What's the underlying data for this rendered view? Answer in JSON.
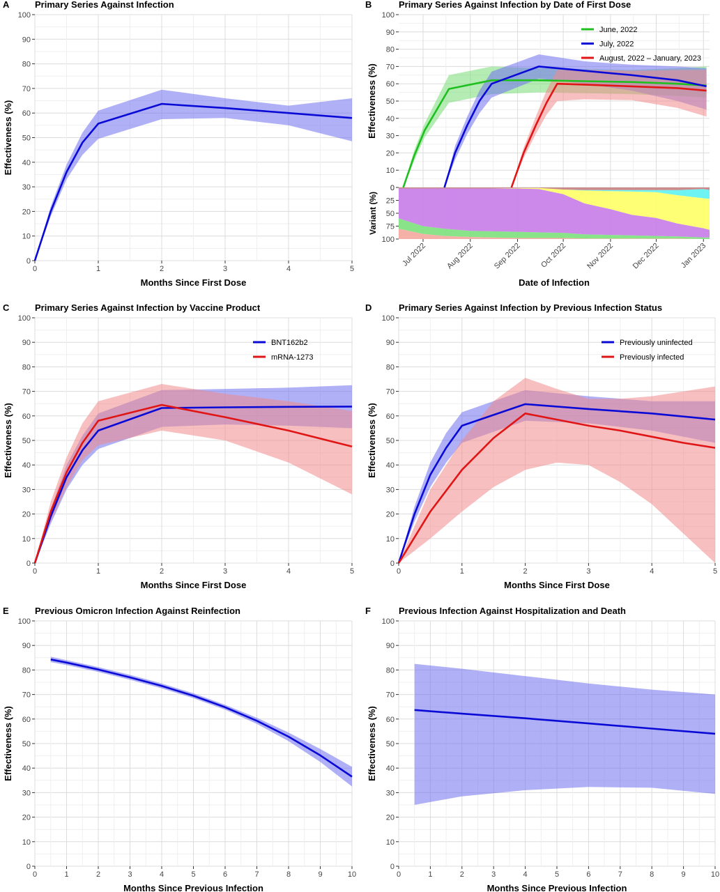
{
  "figure": {
    "panels": [
      {
        "letter": "A",
        "title": "Primary Series Against Infection"
      },
      {
        "letter": "B",
        "title": "Primary Series Against Infection by Date of First Dose"
      },
      {
        "letter": "C",
        "title": "Primary Series Against Infection by Vaccine Product"
      },
      {
        "letter": "D",
        "title": "Primary Series Against Infection by Previous Infection Status"
      },
      {
        "letter": "E",
        "title": "Previous Omicron Infection Against Reinfection"
      },
      {
        "letter": "F",
        "title": "Previous Infection Against Hospitalization and Death"
      }
    ]
  },
  "chart_data": [
    {
      "panel": "A",
      "type": "line",
      "title": "Primary Series Against Infection",
      "xlabel": "Months Since First Dose",
      "ylabel": "Effectiveness (%)",
      "xlim": [
        0,
        5
      ],
      "ylim": [
        0,
        100
      ],
      "grid": true,
      "xticks": [
        0,
        1,
        2,
        3,
        4,
        5
      ],
      "yticks": [
        0,
        10,
        20,
        30,
        40,
        50,
        60,
        70,
        80,
        90,
        100
      ],
      "series": [
        {
          "color": "#0a0ad6",
          "band_color": "#7070f0",
          "x": [
            0,
            0.25,
            0.5,
            0.75,
            1,
            2,
            3,
            4,
            5
          ],
          "y": [
            0,
            20,
            36,
            48,
            55.7,
            63.7,
            62,
            60,
            58
          ],
          "lower": [
            0,
            18,
            33,
            43,
            49.5,
            57.5,
            58,
            55,
            48.5
          ],
          "upper": [
            0,
            22,
            39,
            52,
            61,
            69.5,
            66,
            63,
            66
          ]
        }
      ]
    },
    {
      "panel": "B",
      "type": "line",
      "title": "Primary Series Against Infection by Date of First Dose",
      "xlabel": "Date of Infection",
      "ylabel": "Effectiveness (%)",
      "x_domain": [
        "2022-06-15",
        "2023-01-05"
      ],
      "ylim": [
        0,
        100
      ],
      "grid": true,
      "x_ticks": [
        {
          "date": "2022-07-01",
          "label": "Jul 2022"
        },
        {
          "date": "2022-08-01",
          "label": "Aug 2022"
        },
        {
          "date": "2022-09-01",
          "label": "Sep 2022"
        },
        {
          "date": "2022-10-01",
          "label": "Oct 2022"
        },
        {
          "date": "2022-11-01",
          "label": "Nov 2022"
        },
        {
          "date": "2022-12-01",
          "label": "Dec 2022"
        },
        {
          "date": "2023-01-01",
          "label": "Jan 2023"
        }
      ],
      "yticks": [
        0,
        10,
        20,
        30,
        40,
        50,
        60,
        70,
        80,
        90,
        100
      ],
      "legend_position": "top-right",
      "series": [
        {
          "name": "June, 2022",
          "color": "#1fbf1f",
          "band_color": "#77dd77",
          "x": [
            "2022-06-18",
            "2022-06-25",
            "2022-07-02",
            "2022-07-10",
            "2022-07-18",
            "2022-08-15",
            "2022-09-15",
            "2022-10-15",
            "2022-11-15",
            "2022-12-15",
            "2023-01-03"
          ],
          "y": [
            0,
            18,
            33,
            45,
            57,
            62,
            62,
            61.5,
            61,
            60,
            59
          ],
          "lower": [
            0,
            15,
            29,
            39,
            49,
            54,
            55,
            54.5,
            54,
            53,
            52
          ],
          "upper": [
            0,
            21,
            37,
            51,
            65,
            70,
            69,
            68.5,
            68,
            69,
            70
          ]
        },
        {
          "name": "July, 2022",
          "color": "#0a0ad6",
          "band_color": "#7070f0",
          "x": [
            "2022-07-15",
            "2022-07-22",
            "2022-07-30",
            "2022-08-07",
            "2022-08-15",
            "2022-09-15",
            "2022-10-15",
            "2022-11-15",
            "2022-12-15",
            "2023-01-03"
          ],
          "y": [
            0,
            20,
            36,
            50,
            60,
            70,
            67.5,
            65,
            62,
            58.5
          ],
          "lower": [
            0,
            16,
            31,
            43,
            52,
            63,
            60,
            56,
            50,
            45
          ],
          "upper": [
            0,
            24,
            41,
            56,
            67,
            77,
            73,
            71,
            70,
            69
          ]
        },
        {
          "name": "August, 2022 – January, 2023",
          "color": "#e01515",
          "band_color": "#f08a8a",
          "x": [
            "2022-08-28",
            "2022-09-05",
            "2022-09-13",
            "2022-09-20",
            "2022-09-27",
            "2022-10-15",
            "2022-11-15",
            "2022-12-15",
            "2023-01-03"
          ],
          "y": [
            0,
            20,
            36,
            49,
            60,
            59.5,
            58.5,
            57.5,
            56
          ],
          "lower": [
            0,
            17,
            31,
            42,
            50,
            51,
            50.5,
            46,
            41
          ],
          "upper": [
            0,
            23,
            41,
            56,
            68,
            68,
            67.5,
            68,
            68
          ]
        }
      ],
      "variant_panel": {
        "ylabel": "Variant (%)",
        "yticks": [
          0,
          25,
          50,
          75,
          100
        ],
        "ylim": [
          0,
          100
        ],
        "dates": [
          "2022-06-15",
          "2022-07-01",
          "2022-07-15",
          "2022-08-01",
          "2022-08-15",
          "2022-09-01",
          "2022-09-15",
          "2022-10-01",
          "2022-10-15",
          "2022-11-01",
          "2022-11-15",
          "2022-12-01",
          "2022-12-15",
          "2023-01-01",
          "2023-01-05"
        ],
        "layers": [
          {
            "color": "#f4a99d",
            "values": [
              20,
              10,
              6,
              4,
              3,
              2,
              2,
              2,
              1,
              1,
              1,
              1,
              1,
              0,
              0
            ]
          },
          {
            "color": "#7ce07c",
            "values": [
              20,
              15,
              14,
              12,
              12,
              12,
              11,
              10,
              8,
              7,
              6,
              5,
              4,
              3,
              3
            ]
          },
          {
            "color": "#c77ce8",
            "values": [
              58,
              73,
              78,
              82,
              83,
              84,
              84,
              75,
              60,
              50,
              40,
              35,
              25,
              18,
              15
            ]
          },
          {
            "color": "#ffff66",
            "values": [
              0,
              0,
              0,
              0,
              0,
              1,
              2,
              9,
              25,
              35,
              45,
              50,
              55,
              58,
              60
            ]
          },
          {
            "color": "#5ef2f2",
            "values": [
              0,
              0,
              0,
              0,
              0,
              0,
              0,
              0,
              1,
              2,
              3,
              4,
              10,
              18,
              17
            ]
          },
          {
            "color": "#c47f7f",
            "values": [
              2,
              2,
              2,
              2,
              2,
              1,
              1,
              4,
              5,
              5,
              5,
              5,
              5,
              3,
              5
            ]
          }
        ]
      }
    },
    {
      "panel": "C",
      "type": "line",
      "title": "Primary Series Against Infection by Vaccine Product",
      "xlabel": "Months Since First Dose",
      "ylabel": "Effectiveness (%)",
      "xlim": [
        0,
        5
      ],
      "ylim": [
        0,
        100
      ],
      "grid": true,
      "xticks": [
        0,
        1,
        2,
        3,
        4,
        5
      ],
      "yticks": [
        0,
        10,
        20,
        30,
        40,
        50,
        60,
        70,
        80,
        90,
        100
      ],
      "legend_position": "top-right",
      "series": [
        {
          "name": "BNT162b2",
          "color": "#0a0ad6",
          "band_color": "#7070f0",
          "x": [
            0,
            0.25,
            0.5,
            0.75,
            1,
            2,
            3,
            4,
            5
          ],
          "y": [
            0,
            19,
            35,
            46,
            54,
            63.2,
            63.5,
            63.7,
            63.8
          ],
          "lower": [
            0,
            16,
            30,
            40,
            46.5,
            55.5,
            56.5,
            56,
            55
          ],
          "upper": [
            0,
            22,
            40,
            52,
            61,
            70.5,
            71,
            71.5,
            72.5
          ]
        },
        {
          "name": "mRNA-1273",
          "color": "#e01515",
          "band_color": "#f08a8a",
          "x": [
            0,
            0.25,
            0.5,
            0.75,
            1,
            2,
            3,
            4,
            5
          ],
          "y": [
            0,
            21,
            37,
            49,
            58,
            64.5,
            59.5,
            54,
            47.5
          ],
          "lower": [
            0,
            17,
            31,
            42,
            48,
            54,
            50,
            41,
            28
          ],
          "upper": [
            0,
            25,
            43,
            57,
            66,
            73,
            69,
            66,
            62
          ]
        }
      ]
    },
    {
      "panel": "D",
      "type": "line",
      "title": "Primary Series Against Infection by Previous Infection Status",
      "xlabel": "Months Since First Dose",
      "ylabel": "Effectiveness (%)",
      "xlim": [
        0,
        5
      ],
      "ylim": [
        0,
        100
      ],
      "grid": true,
      "xticks": [
        0,
        1,
        2,
        3,
        4,
        5
      ],
      "yticks": [
        0,
        10,
        20,
        30,
        40,
        50,
        60,
        70,
        80,
        90,
        100
      ],
      "legend_position": "top-right",
      "series": [
        {
          "name": "Previously uninfected",
          "color": "#0a0ad6",
          "band_color": "#7070f0",
          "x": [
            0,
            0.25,
            0.5,
            0.75,
            1,
            2,
            3,
            4,
            5
          ],
          "y": [
            0,
            20,
            36,
            47,
            56,
            64.8,
            62.8,
            61,
            58.5
          ],
          "lower": [
            0,
            17,
            31,
            41,
            49,
            58,
            57,
            54,
            49
          ],
          "upper": [
            0,
            23,
            41,
            53,
            61.5,
            70.5,
            68,
            66,
            66
          ]
        },
        {
          "name": "Previously infected",
          "color": "#e01515",
          "band_color": "#f08a8a",
          "x": [
            0,
            0.5,
            1,
            1.5,
            2,
            2.5,
            3,
            3.5,
            4,
            4.5,
            5
          ],
          "y": [
            0,
            21,
            38,
            51,
            61,
            58.5,
            56,
            54,
            51.5,
            49,
            47
          ],
          "lower": [
            0,
            10,
            21,
            31,
            38,
            41,
            40,
            33,
            24,
            12,
            0
          ],
          "upper": [
            0,
            30,
            50,
            66,
            75.5,
            71,
            67,
            67,
            68,
            70,
            72
          ]
        }
      ]
    },
    {
      "panel": "E",
      "type": "line",
      "title": "Previous Omicron Infection Against Reinfection",
      "xlabel": "Months Since Previous Infection",
      "ylabel": "Effectiveness (%)",
      "xlim": [
        0,
        10
      ],
      "ylim": [
        0,
        100
      ],
      "grid": true,
      "xticks": [
        0,
        1,
        2,
        3,
        4,
        5,
        6,
        7,
        8,
        9,
        10
      ],
      "yticks": [
        0,
        10,
        20,
        30,
        40,
        50,
        60,
        70,
        80,
        90,
        100
      ],
      "series": [
        {
          "color": "#0a0ad6",
          "band_color": "#7070f0",
          "x": [
            0.5,
            1,
            2,
            3,
            4,
            5,
            6,
            7,
            8,
            9,
            10
          ],
          "y": [
            84.3,
            83,
            80.2,
            77,
            73.5,
            69.5,
            64.8,
            59.3,
            52.8,
            45.2,
            36.5
          ],
          "lower": [
            83.2,
            82,
            79.2,
            76,
            72.5,
            68.5,
            63.8,
            58,
            51,
            42.5,
            32.5
          ],
          "upper": [
            85.4,
            84,
            81.2,
            78,
            74.5,
            70.5,
            65.8,
            60.5,
            54.5,
            47.8,
            40.5
          ]
        }
      ]
    },
    {
      "panel": "F",
      "type": "line",
      "title": "Previous Infection Against Hospitalization and Death",
      "xlabel": "Months Since Previous Infection",
      "ylabel": "Effectiveness (%)",
      "xlim": [
        0,
        10
      ],
      "ylim": [
        0,
        100
      ],
      "grid": true,
      "xticks": [
        0,
        1,
        2,
        3,
        4,
        5,
        6,
        7,
        8,
        9,
        10
      ],
      "yticks": [
        0,
        10,
        20,
        30,
        40,
        50,
        60,
        70,
        80,
        90,
        100
      ],
      "series": [
        {
          "color": "#0a0ad6",
          "band_color": "#7070f0",
          "x": [
            0.5,
            2,
            4,
            6,
            8,
            10
          ],
          "y": [
            63.7,
            62.2,
            60.3,
            58.2,
            56.1,
            54
          ],
          "lower": [
            25,
            28.5,
            31,
            32.3,
            32,
            29.5
          ],
          "upper": [
            82.5,
            80.5,
            77.5,
            74.5,
            72,
            70
          ]
        }
      ]
    }
  ]
}
